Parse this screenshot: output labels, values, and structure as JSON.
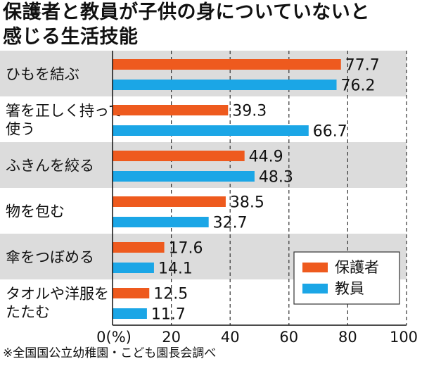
{
  "title": {
    "line1": "保護者と教員が子供の身についていないと",
    "line2": "感じる生活技能"
  },
  "footnote": "※全国国公立幼稚園・こども園長会調べ",
  "chart_data": {
    "type": "bar",
    "orientation": "horizontal",
    "categories": [
      [
        "ひもを結ぶ"
      ],
      [
        "箸を正しく持って",
        "使う"
      ],
      [
        "ふきんを絞る"
      ],
      [
        "物を包む"
      ],
      [
        "傘をつぼめる"
      ],
      [
        "タオルや洋服を",
        "たたむ"
      ]
    ],
    "series": [
      {
        "name": "保護者",
        "color": "#ee5a1e",
        "values": [
          77.7,
          39.3,
          44.9,
          38.5,
          17.6,
          12.5
        ]
      },
      {
        "name": "教員",
        "color": "#1ba6e6",
        "values": [
          76.2,
          66.7,
          48.3,
          32.7,
          14.1,
          11.7
        ]
      }
    ],
    "data_labels": [
      [
        "77.7",
        "39.3",
        "44.9",
        "38.5",
        "17.6",
        "12.5"
      ],
      [
        "76.2",
        "66.7",
        "48.3",
        "32.7",
        "14.1",
        "11.7"
      ]
    ],
    "xlim": [
      0,
      100
    ],
    "xticks": [
      "0(%)",
      "20",
      "40",
      "60",
      "80",
      "100"
    ],
    "grid": "vertical-dashed",
    "legend_position": "bottom-right",
    "row_shading": [
      "#dcdcdc",
      "#ffffff"
    ],
    "bar_colors": {
      "parents": "#ee5a1e",
      "teachers": "#1ba6e6"
    }
  }
}
